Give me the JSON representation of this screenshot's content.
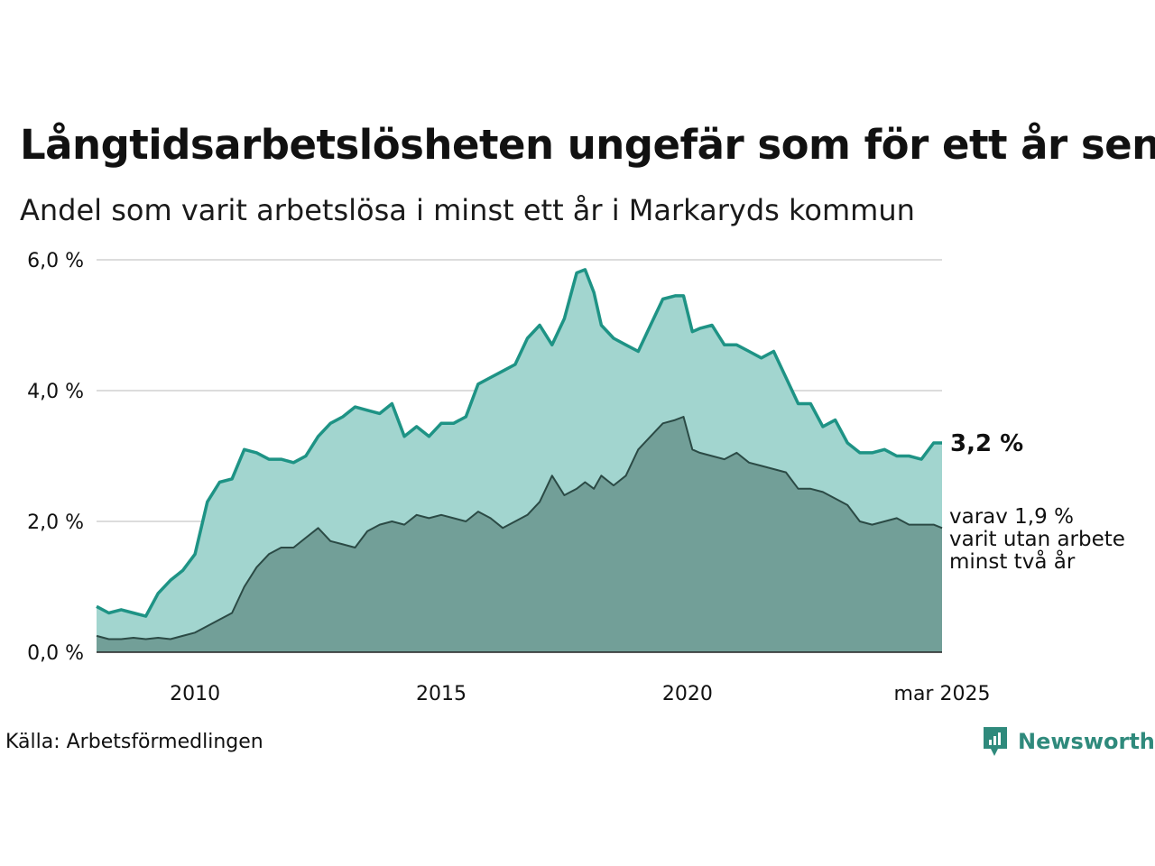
{
  "title": "Långtidsarbetslösheten ungefär som för ett år sen",
  "subtitle": "Andel som varit arbetslösa i minst ett år i Markaryds kommun",
  "source": "Källa: Arbetsförmedlingen",
  "logo": {
    "text": "Newsworthy",
    "icon": "newsworthy-logo-icon"
  },
  "colors": {
    "area_total": "#a2d5cf",
    "line_total": "#1e9385",
    "area_two_years": "#729f98",
    "line_two_years": "#2b4a45",
    "grid": "#dcdcdc"
  },
  "chart_data": {
    "type": "area",
    "x_start": "jan 2008",
    "x_end": "mar 2025",
    "ylim": [
      0,
      6
    ],
    "yticks": [
      {
        "value": 0,
        "label": "0,0 %"
      },
      {
        "value": 2,
        "label": "2,0 %"
      },
      {
        "value": 4,
        "label": "4,0 %"
      },
      {
        "value": 6,
        "label": "6,0 %"
      }
    ],
    "xticks": [
      {
        "value": 2010,
        "label": "2010"
      },
      {
        "value": 2015,
        "label": "2015"
      },
      {
        "value": 2020,
        "label": "2020"
      },
      {
        "value": 2025.17,
        "label": "mar 2025"
      }
    ],
    "grid": true,
    "end_label": "3,2 %",
    "sub_label_lines": [
      "varav 1,9 %",
      "varit utan arbete",
      "minst två år"
    ],
    "series": [
      {
        "key": "total",
        "x": [
          2008.0,
          2008.25,
          2008.5,
          2008.75,
          2009.0,
          2009.25,
          2009.5,
          2009.75,
          2010.0,
          2010.25,
          2010.5,
          2010.75,
          2011.0,
          2011.25,
          2011.5,
          2011.75,
          2012.0,
          2012.25,
          2012.5,
          2012.75,
          2013.0,
          2013.25,
          2013.5,
          2013.75,
          2014.0,
          2014.25,
          2014.5,
          2014.75,
          2015.0,
          2015.25,
          2015.5,
          2015.75,
          2016.0,
          2016.25,
          2016.5,
          2016.75,
          2017.0,
          2017.25,
          2017.5,
          2017.75,
          2017.92,
          2018.1,
          2018.25,
          2018.5,
          2018.75,
          2019.0,
          2019.25,
          2019.5,
          2019.75,
          2019.92,
          2020.1,
          2020.25,
          2020.5,
          2020.75,
          2021.0,
          2021.25,
          2021.5,
          2021.75,
          2022.0,
          2022.25,
          2022.5,
          2022.75,
          2023.0,
          2023.25,
          2023.5,
          2023.75,
          2024.0,
          2024.25,
          2024.5,
          2024.75,
          2025.0,
          2025.17
        ],
        "values": [
          0.7,
          0.6,
          0.65,
          0.6,
          0.55,
          0.9,
          1.1,
          1.25,
          1.5,
          2.3,
          2.6,
          2.65,
          3.1,
          3.05,
          2.95,
          2.95,
          2.9,
          3.0,
          3.3,
          3.5,
          3.6,
          3.75,
          3.7,
          3.65,
          3.8,
          3.3,
          3.45,
          3.3,
          3.5,
          3.5,
          3.6,
          4.1,
          4.2,
          4.3,
          4.4,
          4.8,
          5.0,
          4.7,
          5.1,
          5.8,
          5.85,
          5.5,
          5.0,
          4.8,
          4.7,
          4.6,
          5.0,
          5.4,
          5.45,
          5.45,
          4.9,
          4.95,
          5.0,
          4.7,
          4.7,
          4.6,
          4.5,
          4.6,
          4.2,
          3.8,
          3.8,
          3.45,
          3.55,
          3.2,
          3.05,
          3.05,
          3.1,
          3.0,
          3.0,
          2.95,
          3.2,
          3.2
        ]
      },
      {
        "key": "two_years",
        "x": [
          2008.0,
          2008.25,
          2008.5,
          2008.75,
          2009.0,
          2009.25,
          2009.5,
          2009.75,
          2010.0,
          2010.25,
          2010.5,
          2010.75,
          2011.0,
          2011.25,
          2011.5,
          2011.75,
          2012.0,
          2012.25,
          2012.5,
          2012.75,
          2013.0,
          2013.25,
          2013.5,
          2013.75,
          2014.0,
          2014.25,
          2014.5,
          2014.75,
          2015.0,
          2015.25,
          2015.5,
          2015.75,
          2016.0,
          2016.25,
          2016.5,
          2016.75,
          2017.0,
          2017.25,
          2017.5,
          2017.75,
          2017.92,
          2018.1,
          2018.25,
          2018.5,
          2018.75,
          2019.0,
          2019.25,
          2019.5,
          2019.75,
          2019.92,
          2020.1,
          2020.25,
          2020.5,
          2020.75,
          2021.0,
          2021.25,
          2021.5,
          2021.75,
          2022.0,
          2022.25,
          2022.5,
          2022.75,
          2023.0,
          2023.25,
          2023.5,
          2023.75,
          2024.0,
          2024.25,
          2024.5,
          2024.75,
          2025.0,
          2025.17
        ],
        "values": [
          0.25,
          0.2,
          0.2,
          0.22,
          0.2,
          0.22,
          0.2,
          0.25,
          0.3,
          0.4,
          0.5,
          0.6,
          1.0,
          1.3,
          1.5,
          1.6,
          1.6,
          1.75,
          1.9,
          1.7,
          1.65,
          1.6,
          1.85,
          1.95,
          2.0,
          1.95,
          2.1,
          2.05,
          2.1,
          2.05,
          2.0,
          2.15,
          2.05,
          1.9,
          2.0,
          2.1,
          2.3,
          2.7,
          2.4,
          2.5,
          2.6,
          2.5,
          2.7,
          2.55,
          2.7,
          3.1,
          3.3,
          3.5,
          3.55,
          3.6,
          3.1,
          3.05,
          3.0,
          2.95,
          3.05,
          2.9,
          2.85,
          2.8,
          2.75,
          2.5,
          2.5,
          2.45,
          2.35,
          2.25,
          2.0,
          1.95,
          2.0,
          2.05,
          1.95,
          1.95,
          1.95,
          1.9
        ]
      }
    ]
  }
}
